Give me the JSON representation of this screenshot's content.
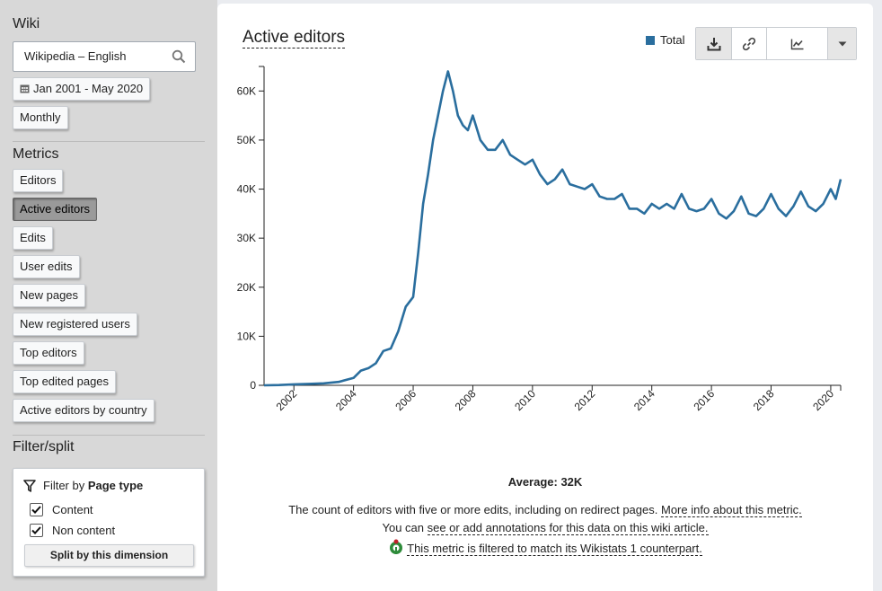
{
  "sidebar": {
    "wiki_heading": "Wiki",
    "wiki_value": "Wikipedia – English",
    "date_range": "Jan 2001 - May 2020",
    "granularity": "Monthly",
    "metrics_heading": "Metrics",
    "metrics": [
      "Editors",
      "Active editors",
      "Edits",
      "User edits",
      "New pages",
      "New registered users",
      "Top editors",
      "Top edited pages",
      "Active editors by country"
    ],
    "active_metric": "Active editors",
    "filter_heading": "Filter/split",
    "filter": {
      "title_prefix": "Filter by ",
      "title_bold": "Page type",
      "options": [
        {
          "label": "Content",
          "checked": true
        },
        {
          "label": "Non content",
          "checked": true
        }
      ],
      "split_button": "Split by this dimension"
    }
  },
  "main": {
    "title": "Active editors",
    "legend": "Total",
    "toolbar_icons": [
      "download-icon",
      "link-icon",
      "chart-type-icon",
      "dropdown-caret-icon"
    ],
    "average": "Average: 32K",
    "description": "The count of editors with five or more edits, including on redirect pages.",
    "more_info_link": "More info about this metric.",
    "annotations_prefix": "You can ",
    "annotations_link": "see or add annotations for this data on this wiki article.",
    "filtered_note": "This metric is filtered to match its Wikistats 1 counterpart."
  },
  "colors": {
    "series": "#2a6e9e"
  },
  "chart_data": {
    "type": "line",
    "title": "Active editors",
    "series": [
      {
        "name": "Total",
        "points": [
          [
            "2001-01",
            0
          ],
          [
            "2001-07",
            50
          ],
          [
            "2002-01",
            200
          ],
          [
            "2002-07",
            300
          ],
          [
            "2003-01",
            400
          ],
          [
            "2003-07",
            700
          ],
          [
            "2004-01",
            1500
          ],
          [
            "2004-04",
            3000
          ],
          [
            "2004-07",
            3500
          ],
          [
            "2004-10",
            4500
          ],
          [
            "2005-01",
            7000
          ],
          [
            "2005-04",
            7500
          ],
          [
            "2005-07",
            11000
          ],
          [
            "2005-10",
            16000
          ],
          [
            "2006-01",
            18000
          ],
          [
            "2006-03",
            27000
          ],
          [
            "2006-05",
            37000
          ],
          [
            "2006-07",
            43000
          ],
          [
            "2006-09",
            50000
          ],
          [
            "2006-11",
            55000
          ],
          [
            "2007-01",
            60000
          ],
          [
            "2007-03",
            64000
          ],
          [
            "2007-05",
            60000
          ],
          [
            "2007-07",
            55000
          ],
          [
            "2007-09",
            53000
          ],
          [
            "2007-11",
            52000
          ],
          [
            "2008-01",
            55000
          ],
          [
            "2008-04",
            50000
          ],
          [
            "2008-07",
            48000
          ],
          [
            "2008-10",
            48000
          ],
          [
            "2009-01",
            50000
          ],
          [
            "2009-04",
            47000
          ],
          [
            "2009-07",
            46000
          ],
          [
            "2009-10",
            45000
          ],
          [
            "2010-01",
            46000
          ],
          [
            "2010-04",
            43000
          ],
          [
            "2010-07",
            41000
          ],
          [
            "2010-10",
            42000
          ],
          [
            "2011-01",
            44000
          ],
          [
            "2011-04",
            41000
          ],
          [
            "2011-07",
            40500
          ],
          [
            "2011-10",
            40000
          ],
          [
            "2012-01",
            41000
          ],
          [
            "2012-04",
            38500
          ],
          [
            "2012-07",
            38000
          ],
          [
            "2012-10",
            38000
          ],
          [
            "2013-01",
            39000
          ],
          [
            "2013-04",
            36000
          ],
          [
            "2013-07",
            36000
          ],
          [
            "2013-10",
            35000
          ],
          [
            "2014-01",
            37000
          ],
          [
            "2014-04",
            36000
          ],
          [
            "2014-07",
            37000
          ],
          [
            "2014-10",
            36000
          ],
          [
            "2015-01",
            39000
          ],
          [
            "2015-04",
            36000
          ],
          [
            "2015-07",
            35500
          ],
          [
            "2015-10",
            36000
          ],
          [
            "2016-01",
            38000
          ],
          [
            "2016-04",
            35000
          ],
          [
            "2016-07",
            34000
          ],
          [
            "2016-10",
            35500
          ],
          [
            "2017-01",
            38500
          ],
          [
            "2017-04",
            35000
          ],
          [
            "2017-07",
            34500
          ],
          [
            "2017-10",
            36000
          ],
          [
            "2018-01",
            39000
          ],
          [
            "2018-04",
            36000
          ],
          [
            "2018-07",
            34500
          ],
          [
            "2018-10",
            36500
          ],
          [
            "2019-01",
            39500
          ],
          [
            "2019-04",
            36500
          ],
          [
            "2019-07",
            35500
          ],
          [
            "2019-10",
            37000
          ],
          [
            "2020-01",
            40000
          ],
          [
            "2020-03",
            38000
          ],
          [
            "2020-05",
            42000
          ]
        ]
      }
    ],
    "x_ticks": [
      "2002",
      "2004",
      "2006",
      "2008",
      "2010",
      "2012",
      "2014",
      "2016",
      "2018",
      "2020"
    ],
    "y_ticks": [
      "0",
      "10K",
      "20K",
      "30K",
      "40K",
      "50K",
      "60K"
    ],
    "ylim": [
      0,
      65000
    ],
    "xlim": [
      "2001-01",
      "2020-05"
    ],
    "grid": false,
    "legend": "top-right"
  }
}
